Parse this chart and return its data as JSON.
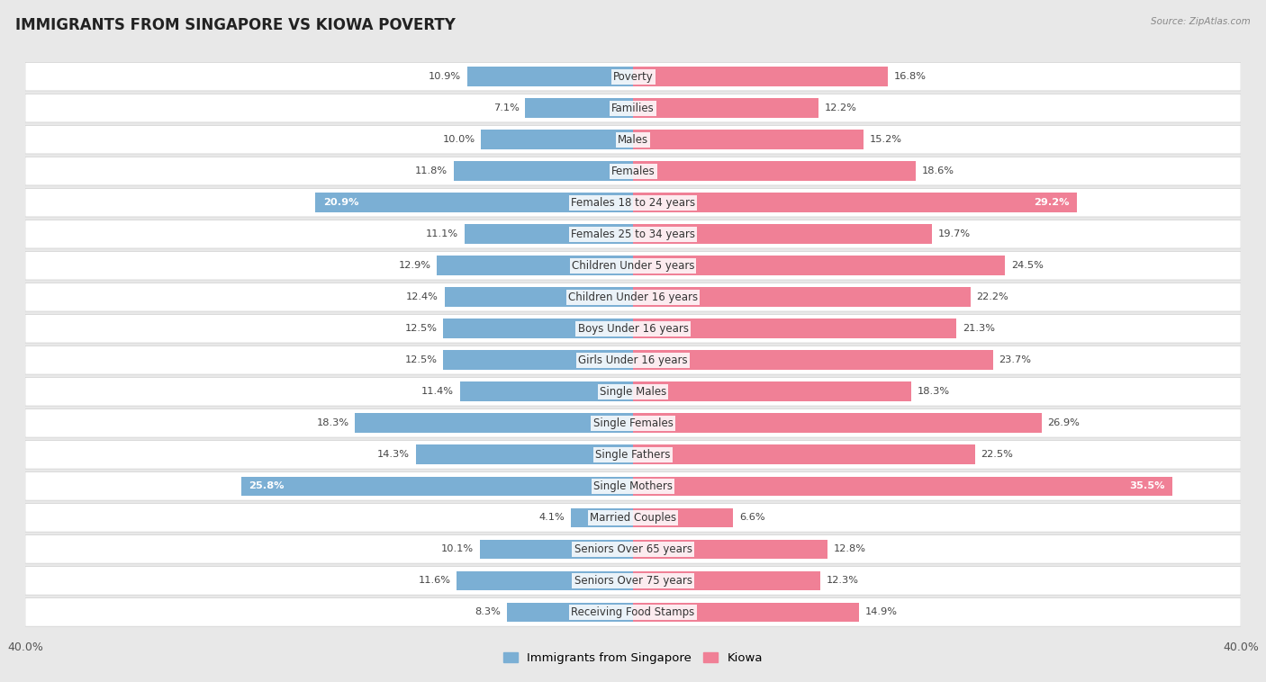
{
  "title": "IMMIGRANTS FROM SINGAPORE VS KIOWA POVERTY",
  "source": "Source: ZipAtlas.com",
  "categories": [
    "Poverty",
    "Families",
    "Males",
    "Females",
    "Females 18 to 24 years",
    "Females 25 to 34 years",
    "Children Under 5 years",
    "Children Under 16 years",
    "Boys Under 16 years",
    "Girls Under 16 years",
    "Single Males",
    "Single Females",
    "Single Fathers",
    "Single Mothers",
    "Married Couples",
    "Seniors Over 65 years",
    "Seniors Over 75 years",
    "Receiving Food Stamps"
  ],
  "singapore_values": [
    10.9,
    7.1,
    10.0,
    11.8,
    20.9,
    11.1,
    12.9,
    12.4,
    12.5,
    12.5,
    11.4,
    18.3,
    14.3,
    25.8,
    4.1,
    10.1,
    11.6,
    8.3
  ],
  "kiowa_values": [
    16.8,
    12.2,
    15.2,
    18.6,
    29.2,
    19.7,
    24.5,
    22.2,
    21.3,
    23.7,
    18.3,
    26.9,
    22.5,
    35.5,
    6.6,
    12.8,
    12.3,
    14.9
  ],
  "singapore_color": "#7bafd4",
  "kiowa_color": "#f08096",
  "singapore_label": "Immigrants from Singapore",
  "kiowa_label": "Kiowa",
  "axis_max": 40.0,
  "background_color": "#e8e8e8",
  "row_bg": "#ffffff",
  "row_border": "#d0d0d0",
  "title_fontsize": 12,
  "label_fontsize": 8.5,
  "value_fontsize": 8.2,
  "inside_label_threshold_sg": 20.0,
  "inside_label_threshold_ki": 28.0
}
